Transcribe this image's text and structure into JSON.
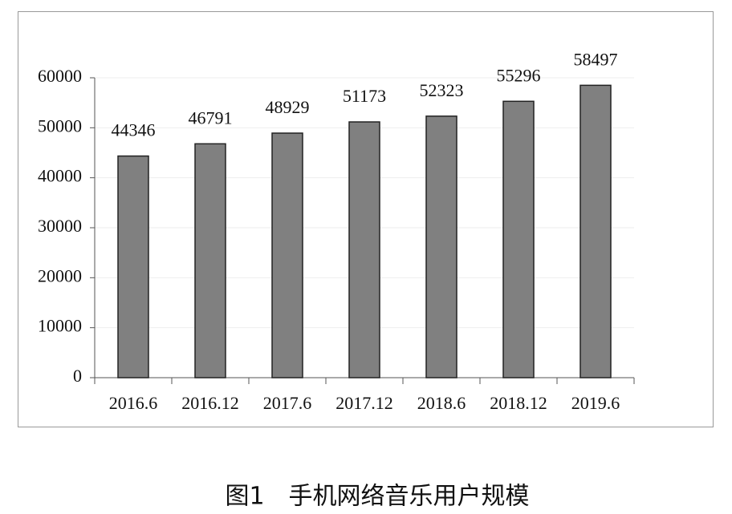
{
  "chart_data": {
    "type": "bar",
    "caption": "图1　手机网络音乐用户规模",
    "categories": [
      "2016.6",
      "2016.12",
      "2017.6",
      "2017.12",
      "2018.6",
      "2018.12",
      "2019.6"
    ],
    "values": [
      44346,
      46791,
      48929,
      51173,
      52323,
      55296,
      58497
    ],
    "color": "#808080",
    "ylim": [
      0,
      60000
    ],
    "yticks": [
      0,
      10000,
      20000,
      30000,
      40000,
      50000,
      60000
    ],
    "grid": true
  }
}
